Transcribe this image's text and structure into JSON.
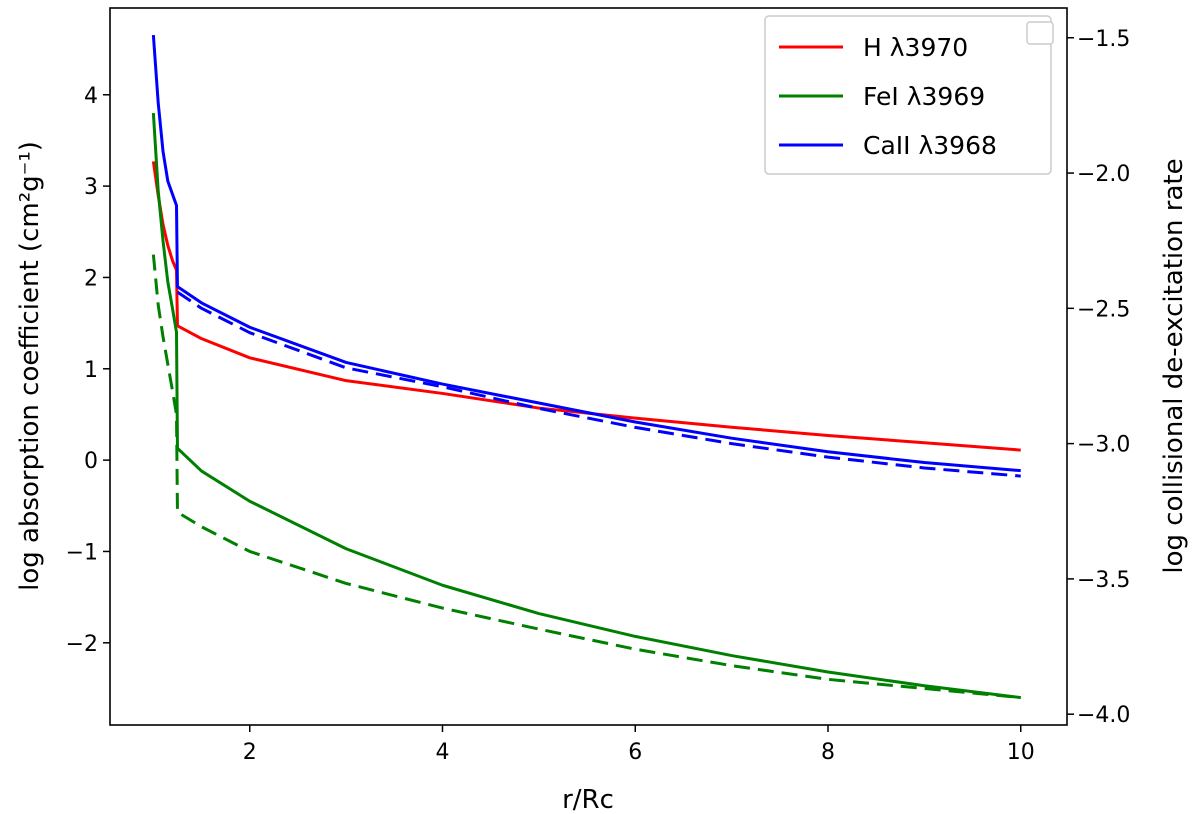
{
  "chart_data": {
    "type": "line",
    "xlabel": "r/Rc",
    "ylabel_left": "log absorption coefficient (cm²g⁻¹)",
    "ylabel_right": "log collisional de-excitation rate",
    "xlim": [
      0.55,
      10.48
    ],
    "ylim_left": [
      -2.9,
      4.95
    ],
    "ylim_right": [
      -4.04,
      -1.39
    ],
    "x_ticks": [
      2,
      4,
      6,
      8,
      10
    ],
    "y_ticks_left": [
      -2,
      -1,
      0,
      1,
      2,
      3,
      4
    ],
    "y_ticks_right": [
      -4.0,
      -3.5,
      -3.0,
      -2.5,
      -2.0,
      -1.5
    ],
    "x_tick_labels": [
      "2",
      "4",
      "6",
      "8",
      "10"
    ],
    "y_tick_labels_left": [
      "−2",
      "−1",
      "0",
      "1",
      "2",
      "3",
      "4"
    ],
    "y_tick_labels_right": [
      "−4.0",
      "−3.5",
      "−3.0",
      "−2.5",
      "−2.0",
      "−1.5"
    ],
    "grid": false,
    "legend_position": "top-right",
    "colors": {
      "H": "#ff0000",
      "FeI": "#008000",
      "CaII": "#0000ff"
    },
    "series": [
      {
        "name": "H λ3970",
        "color": "#ff0000",
        "style": "solid",
        "axis": "left",
        "x": [
          1.0,
          1.05,
          1.1,
          1.15,
          1.2,
          1.24,
          1.25,
          1.5,
          2,
          3,
          4,
          5,
          6,
          7,
          8,
          9,
          10
        ],
        "y": [
          3.27,
          2.9,
          2.58,
          2.35,
          2.18,
          2.08,
          1.47,
          1.33,
          1.12,
          0.87,
          0.73,
          0.57,
          0.46,
          0.36,
          0.27,
          0.19,
          0.11
        ]
      },
      {
        "name": "FeI λ3969",
        "color": "#008000",
        "style": "solid",
        "axis": "left",
        "x": [
          1.0,
          1.05,
          1.1,
          1.15,
          1.2,
          1.24,
          1.25,
          1.5,
          2,
          3,
          4,
          5,
          6,
          7,
          8,
          9,
          10
        ],
        "y": [
          3.8,
          2.95,
          2.4,
          1.95,
          1.65,
          1.4,
          0.13,
          -0.12,
          -0.45,
          -0.97,
          -1.37,
          -1.68,
          -1.93,
          -2.14,
          -2.32,
          -2.47,
          -2.6
        ]
      },
      {
        "name": "CaII λ3968",
        "color": "#0000ff",
        "style": "solid",
        "axis": "right",
        "x": [
          1.0,
          1.05,
          1.1,
          1.15,
          1.2,
          1.24,
          1.25,
          1.5,
          2,
          3,
          4,
          5,
          6,
          7,
          8,
          9,
          10
        ],
        "y": [
          -1.49,
          -1.74,
          -1.92,
          -2.03,
          -2.08,
          -2.12,
          -2.42,
          -2.48,
          -2.57,
          -2.7,
          -2.78,
          -2.85,
          -2.92,
          -2.98,
          -3.03,
          -3.07,
          -3.1
        ]
      },
      {
        "name": "",
        "color": "#0000ff",
        "style": "dashed",
        "axis": "right",
        "x": [
          1.25,
          1.5,
          2,
          3,
          4,
          5,
          6,
          7,
          8,
          9,
          10
        ],
        "y": [
          -2.44,
          -2.5,
          -2.59,
          -2.72,
          -2.79,
          -2.87,
          -2.94,
          -3.0,
          -3.05,
          -3.09,
          -3.12
        ]
      },
      {
        "name": "",
        "color": "#008000",
        "style": "dashed",
        "axis": "left",
        "x": [
          1.0,
          1.05,
          1.1,
          1.15,
          1.2,
          1.24,
          1.25,
          1.5,
          2,
          3,
          4,
          5,
          6,
          7,
          8,
          9,
          10
        ],
        "y": [
          2.25,
          1.7,
          1.35,
          1.05,
          0.75,
          0.5,
          -0.57,
          -0.73,
          -1.0,
          -1.35,
          -1.62,
          -1.85,
          -2.07,
          -2.25,
          -2.4,
          -2.5,
          -2.6
        ]
      }
    ]
  }
}
